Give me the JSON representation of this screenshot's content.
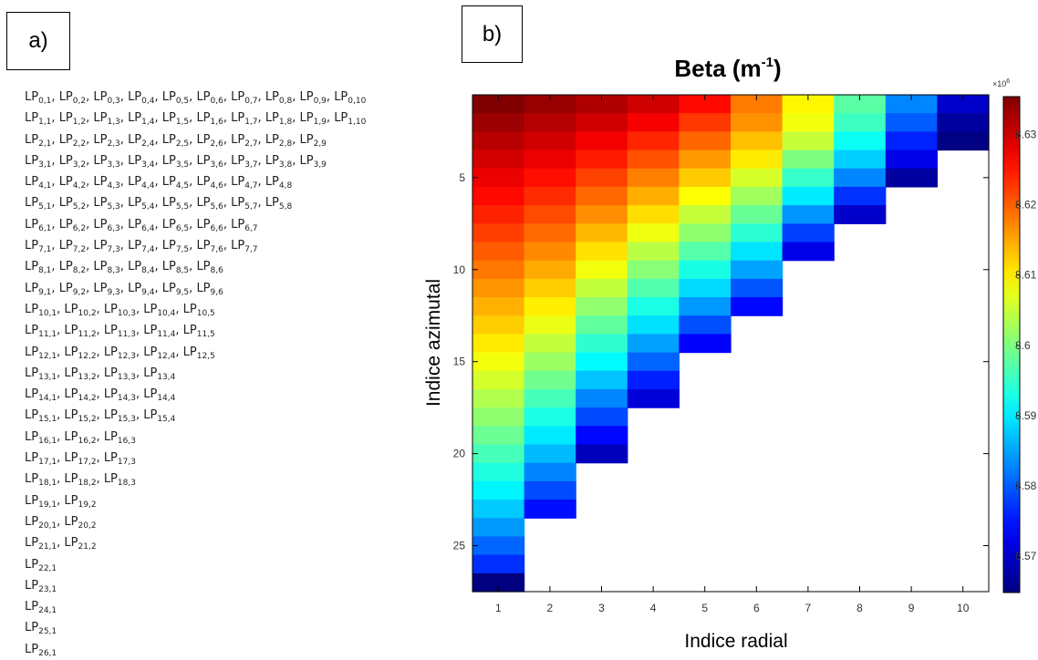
{
  "panel_a": {
    "label": "a)",
    "rows": [
      [
        [
          "0",
          "1"
        ],
        [
          "0",
          "2"
        ],
        [
          "0",
          "3"
        ],
        [
          "0",
          "4"
        ],
        [
          "0",
          "5"
        ],
        [
          "0",
          "6"
        ],
        [
          "0",
          "7"
        ],
        [
          "0",
          "8"
        ],
        [
          "0",
          "9"
        ],
        [
          "0",
          "10"
        ]
      ],
      [
        [
          "1",
          "1"
        ],
        [
          "1",
          "2"
        ],
        [
          "1",
          "3"
        ],
        [
          "1",
          "4"
        ],
        [
          "1",
          "5"
        ],
        [
          "1",
          "6"
        ],
        [
          "1",
          "7"
        ],
        [
          "1",
          "8"
        ],
        [
          "1",
          "9"
        ],
        [
          "1",
          "10"
        ]
      ],
      [
        [
          "2",
          "1"
        ],
        [
          "2",
          "2"
        ],
        [
          "2",
          "3"
        ],
        [
          "2",
          "4"
        ],
        [
          "2",
          "5"
        ],
        [
          "2",
          "6"
        ],
        [
          "2",
          "7"
        ],
        [
          "2",
          "8"
        ],
        [
          "2",
          "9"
        ]
      ],
      [
        [
          "3",
          "1"
        ],
        [
          "3",
          "2"
        ],
        [
          "3",
          "3"
        ],
        [
          "3",
          "4"
        ],
        [
          "3",
          "5"
        ],
        [
          "3",
          "6"
        ],
        [
          "3",
          "7"
        ],
        [
          "3",
          "8"
        ],
        [
          "3",
          "9"
        ]
      ],
      [
        [
          "4",
          "1"
        ],
        [
          "4",
          "2"
        ],
        [
          "4",
          "3"
        ],
        [
          "4",
          "4"
        ],
        [
          "4",
          "5"
        ],
        [
          "4",
          "6"
        ],
        [
          "4",
          "7"
        ],
        [
          "4",
          "8"
        ]
      ],
      [
        [
          "5",
          "1"
        ],
        [
          "5",
          "2"
        ],
        [
          "5",
          "3"
        ],
        [
          "5",
          "4"
        ],
        [
          "5",
          "5"
        ],
        [
          "5",
          "6"
        ],
        [
          "5",
          "7"
        ],
        [
          "5",
          "8"
        ]
      ],
      [
        [
          "6",
          "1"
        ],
        [
          "6",
          "2"
        ],
        [
          "6",
          "3"
        ],
        [
          "6",
          "4"
        ],
        [
          "6",
          "5"
        ],
        [
          "6",
          "6"
        ],
        [
          "6",
          "7"
        ]
      ],
      [
        [
          "7",
          "1"
        ],
        [
          "7",
          "2"
        ],
        [
          "7",
          "3"
        ],
        [
          "7",
          "4"
        ],
        [
          "7",
          "5"
        ],
        [
          "7",
          "6"
        ],
        [
          "7",
          "7"
        ]
      ],
      [
        [
          "8",
          "1"
        ],
        [
          "8",
          "2"
        ],
        [
          "8",
          "3"
        ],
        [
          "8",
          "4"
        ],
        [
          "8",
          "5"
        ],
        [
          "8",
          "6"
        ]
      ],
      [
        [
          "9",
          "1"
        ],
        [
          "9",
          "2"
        ],
        [
          "9",
          "3"
        ],
        [
          "9",
          "4"
        ],
        [
          "9",
          "5"
        ],
        [
          "9",
          "6"
        ]
      ],
      [
        [
          "10",
          "1"
        ],
        [
          "10",
          "2"
        ],
        [
          "10",
          "3"
        ],
        [
          "10",
          "4"
        ],
        [
          "10",
          "5"
        ]
      ],
      [
        [
          "11",
          "1"
        ],
        [
          "11",
          "2"
        ],
        [
          "11",
          "3"
        ],
        [
          "11",
          "4"
        ],
        [
          "11",
          "5"
        ]
      ],
      [
        [
          "12",
          "1"
        ],
        [
          "12",
          "2"
        ],
        [
          "12",
          "3"
        ],
        [
          "12",
          "4"
        ],
        [
          "12",
          "5"
        ]
      ],
      [
        [
          "13",
          "1"
        ],
        [
          "13",
          "2"
        ],
        [
          "13",
          "3"
        ],
        [
          "13",
          "4"
        ]
      ],
      [
        [
          "14",
          "1"
        ],
        [
          "14",
          "2"
        ],
        [
          "14",
          "3"
        ],
        [
          "14",
          "4"
        ]
      ],
      [
        [
          "15",
          "1"
        ],
        [
          "15",
          "2"
        ],
        [
          "15",
          "3"
        ],
        [
          "15",
          "4"
        ]
      ],
      [
        [
          "16",
          "1"
        ],
        [
          "16",
          "2"
        ],
        [
          "16",
          "3"
        ]
      ],
      [
        [
          "17",
          "1"
        ],
        [
          "17",
          "2"
        ],
        [
          "17",
          "3"
        ]
      ],
      [
        [
          "18",
          "1"
        ],
        [
          "18",
          "2"
        ],
        [
          "18",
          "3"
        ]
      ],
      [
        [
          "19",
          "1"
        ],
        [
          "19",
          "2"
        ]
      ],
      [
        [
          "20",
          "1"
        ],
        [
          "20",
          "2"
        ]
      ],
      [
        [
          "21",
          "1"
        ],
        [
          "21",
          "2"
        ]
      ],
      [
        [
          "22",
          "1"
        ]
      ],
      [
        [
          "23",
          "1"
        ]
      ],
      [
        [
          "24",
          "1"
        ]
      ],
      [
        [
          "25",
          "1"
        ]
      ],
      [
        [
          "26",
          "1"
        ]
      ]
    ]
  },
  "panel_b": {
    "label": "b)"
  },
  "chart_data": {
    "type": "heatmap",
    "title": "Beta (m",
    "title_superscript": "-1",
    "title_suffix": ")",
    "xlabel": "Indice radial",
    "ylabel": "Indice azimutal",
    "x_ticks": [
      1,
      2,
      3,
      4,
      5,
      6,
      7,
      8,
      9,
      10
    ],
    "y_ticks": [
      5,
      10,
      15,
      20,
      25
    ],
    "rows_per_column": [
      27,
      23,
      20,
      17,
      14,
      12,
      9,
      7,
      5,
      3
    ],
    "n_rows": 27,
    "n_cols": 10,
    "colormap": "jet",
    "colorbar": {
      "exponent_label": "×10",
      "exponent": "6",
      "ticks": [
        "8.63",
        "8.62",
        "8.61",
        "8.6",
        "8.59",
        "8.58",
        "8.57"
      ],
      "tick_values": [
        8.63,
        8.62,
        8.61,
        8.6,
        8.59,
        8.58,
        8.57
      ],
      "min": 8.5648,
      "max": 8.6354
    },
    "values_x1e6_by_column": [
      [
        8.6354,
        8.6334,
        8.6314,
        8.6296,
        8.6279,
        8.626,
        8.6242,
        8.6223,
        8.6203,
        8.6184,
        8.6164,
        8.6144,
        8.6124,
        8.6103,
        8.6081,
        8.606,
        8.6036,
        8.6012,
        8.5987,
        8.5961,
        8.5934,
        8.5906,
        8.5876,
        8.5843,
        8.5807,
        8.5768,
        8.5648
      ],
      [
        8.6338,
        8.6318,
        8.6298,
        8.6278,
        8.6257,
        8.6236,
        8.6214,
        8.6192,
        8.617,
        8.6148,
        8.6124,
        8.61,
        8.6075,
        8.6048,
        8.602,
        8.599,
        8.5961,
        8.5931,
        8.5899,
        8.5865,
        8.5828,
        8.5788,
        8.5745
      ],
      [
        8.6322,
        8.6298,
        8.6273,
        8.6248,
        8.6221,
        8.6194,
        8.6167,
        8.6138,
        8.6109,
        8.608,
        8.6047,
        8.6013,
        8.598,
        8.5945,
        8.591,
        8.5871,
        8.5829,
        8.5787,
        8.574,
        8.569
      ],
      [
        8.63,
        8.6271,
        8.624,
        8.621,
        8.6178,
        8.6145,
        8.6112,
        8.6078,
        8.6042,
        8.6007,
        8.5969,
        8.5931,
        8.5891,
        8.5848,
        8.5806,
        8.5758,
        8.571
      ],
      [
        8.626,
        8.6228,
        8.6195,
        8.616,
        8.6125,
        8.6088,
        8.605,
        8.6012,
        8.5972,
        8.593,
        8.5888,
        8.5842,
        8.5791,
        8.5735
      ],
      [
        8.618,
        8.6165,
        8.6133,
        8.6103,
        8.6061,
        8.6024,
        8.5985,
        8.5943,
        8.5895,
        8.5849,
        8.5795,
        8.574
      ],
      [
        8.6095,
        8.608,
        8.605,
        8.6,
        8.595,
        8.59,
        8.584,
        8.578,
        8.572
      ],
      [
        8.5975,
        8.5955,
        8.592,
        8.588,
        8.583,
        8.577,
        8.57
      ],
      [
        8.583,
        8.58,
        8.576,
        8.572,
        8.567
      ],
      [
        8.57,
        8.567,
        8.565
      ]
    ]
  }
}
